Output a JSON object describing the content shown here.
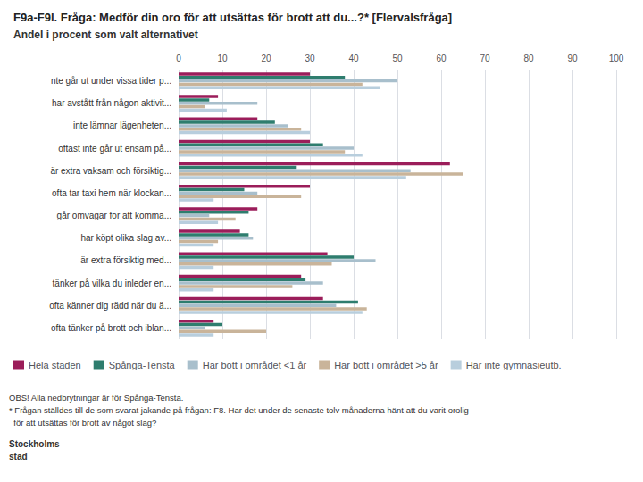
{
  "chart_data": {
    "type": "bar",
    "orientation": "horizontal",
    "title": "F9a-F9l. Fråga: Medför din oro för att utsättas för brott att du...?* [Flervalsfråga]",
    "subtitle": "Andel i procent som valt alternativet",
    "categories": [
      "nte går ut under vissa tider p...",
      "har avstått från någon aktivit...",
      "  inte lämnar lägenheten...",
      "oftast inte går ut ensam på...",
      "är extra vaksam och försiktig...",
      "ofta tar taxi hem när klockan...",
      "  går omvägar för att komma...",
      "  har köpt olika slag av...",
      "är extra försiktig med...",
      "tänker på vilka du inleder en...",
      "ofta känner dig rädd när du ä...",
      "ofta tänker på brott och iblan..."
    ],
    "series": [
      {
        "name": "Hela staden",
        "color": "#9B1D5A",
        "values": [
          30,
          9,
          18,
          30,
          62,
          30,
          18,
          14,
          34,
          28,
          33,
          8
        ]
      },
      {
        "name": "Spånga-Tensta",
        "color": "#2E7D6E",
        "values": [
          38,
          7,
          22,
          33,
          27,
          15,
          16,
          16,
          40,
          29,
          41,
          10
        ]
      },
      {
        "name": "Har bott i området <1 år",
        "color": "#A8BFCC",
        "values": [
          50,
          18,
          25,
          40,
          53,
          18,
          7,
          17,
          45,
          33,
          36,
          6
        ]
      },
      {
        "name": "Har bott i området >5 år",
        "color": "#C9B49A",
        "values": [
          42,
          6,
          28,
          38,
          65,
          28,
          13,
          9,
          35,
          26,
          43,
          20
        ]
      },
      {
        "name": "Har inte gymnasieutb.",
        "color": "#B8CEDD",
        "values": [
          46,
          11,
          30,
          42,
          52,
          8,
          9,
          8,
          8,
          8,
          42,
          8
        ]
      }
    ],
    "xlim": [
      0,
      100
    ],
    "xticks": [
      0,
      10,
      20,
      30,
      40,
      50,
      60,
      70,
      80,
      90,
      100
    ],
    "grid": true,
    "legend": "lower left",
    "annotations": [
      "OBS! Alla nedbrytningar är för Spånga-Tensta.",
      "* Frågan ställdes till de som svarat jakande på frågan: F8. Har det under de senaste tolv månaderna hänt att du varit orolig",
      "  för att utsättas för brott av något slag?",
      "Stockholms",
      "stad"
    ]
  }
}
